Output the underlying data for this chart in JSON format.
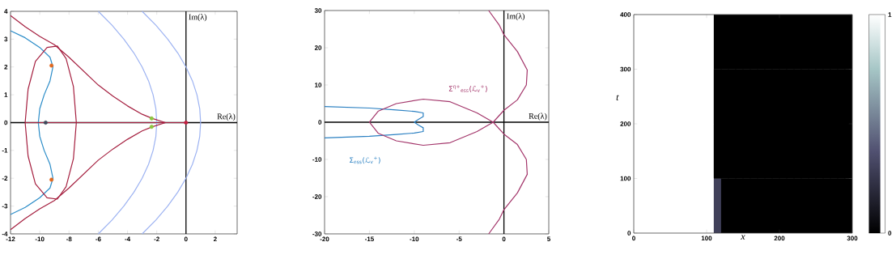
{
  "chart_data": [
    {
      "type": "line",
      "xlim": [
        -12,
        3.5
      ],
      "ylim": [
        -4,
        4
      ],
      "xticks": [
        -12,
        -10,
        -8,
        -6,
        -4,
        -2,
        0,
        2
      ],
      "yticks": [
        -4,
        -3,
        -2,
        -1,
        0,
        1,
        2,
        3,
        4
      ],
      "ref_lines": [
        {
          "axis": "x",
          "value": 0,
          "label": "Im(λ)",
          "color": "#000000"
        },
        {
          "axis": "y",
          "value": 0,
          "label": "Re(λ)",
          "color": "#000000"
        }
      ],
      "series": [
        {
          "color": "#9db3f2",
          "x": [
            -6,
            -5.06,
            -4.25,
            -3.56,
            -3,
            -2.56,
            -2.25,
            -2.06,
            -2,
            -2.06,
            -2.25,
            -2.56,
            -3,
            -3.56,
            -4.25,
            -5.06,
            -6
          ],
          "values": [
            4,
            3.5,
            3,
            2.5,
            2,
            1.5,
            1,
            0.5,
            0,
            -0.5,
            -1,
            -1.5,
            -2,
            -2.5,
            -3,
            -3.5,
            -4
          ]
        },
        {
          "color": "#9db3f2",
          "x": [
            -3,
            -2.06,
            -1.25,
            -0.56,
            0,
            0.44,
            0.75,
            0.94,
            1,
            0.94,
            0.75,
            0.44,
            0,
            -0.56,
            -1.25,
            -2.06,
            -3
          ],
          "values": [
            4,
            3.5,
            3,
            2.5,
            2,
            1.5,
            1,
            0.5,
            0,
            -0.5,
            -1,
            -1.5,
            -2,
            -2.5,
            -3,
            -3.5,
            -4
          ]
        },
        {
          "color": "#2b8cc8",
          "x": [
            -12,
            -11,
            -10,
            -9.3,
            -9.1,
            -9.3,
            -9.7,
            -10,
            -10.1,
            -10,
            -9.7,
            -9.3,
            -9.1,
            -9.3,
            -10,
            -11,
            -12
          ],
          "values": [
            3.3,
            3.05,
            2.7,
            2.35,
            2,
            1.5,
            1,
            0.5,
            0,
            -0.5,
            -1,
            -1.5,
            -2,
            -2.35,
            -2.7,
            -3.05,
            -3.3
          ]
        },
        {
          "color": "#a51f3f",
          "x": [
            -12,
            -11,
            -10,
            -9,
            -8,
            -6,
            -5,
            -4,
            -3,
            -2.3,
            -1.4,
            -2.3,
            -3,
            -4,
            -5,
            -6,
            -8,
            -9,
            -10,
            -11,
            -12
          ],
          "values": [
            3.85,
            3.45,
            3.1,
            2.8,
            2.35,
            1.35,
            0.95,
            0.6,
            0.3,
            0.15,
            0,
            -0.15,
            -0.3,
            -0.6,
            -0.95,
            -1.35,
            -2.35,
            -2.8,
            -3.1,
            -3.45,
            -3.85
          ]
        },
        {
          "color": "#a51f3f",
          "x": [
            -11,
            -10.8,
            -10.3,
            -9.5,
            -8.8,
            -8.2,
            -7.7,
            -7.5,
            -7.7,
            -8.2,
            -8.8,
            -9.5,
            -10.3,
            -10.8,
            -11,
            0
          ],
          "values": [
            0,
            1.2,
            2.2,
            2.7,
            2.75,
            2.3,
            1.3,
            0,
            -1.3,
            -2.3,
            -2.75,
            -2.7,
            -2.2,
            -1.2,
            0,
            0
          ]
        },
        {
          "type": "scatter",
          "marker": "circle",
          "color": "#e2691f",
          "x": [
            -9.2,
            -9.2
          ],
          "values": [
            2.05,
            -2.05
          ]
        },
        {
          "type": "scatter",
          "marker": "circle",
          "color": "#3e4a5c",
          "x": [
            -9.6
          ],
          "values": [
            0
          ]
        },
        {
          "type": "scatter",
          "marker": "circle",
          "color": "#8cc63f",
          "x": [
            -2.35,
            -2.35
          ],
          "values": [
            0.15,
            -0.15
          ]
        },
        {
          "type": "scatter",
          "marker": "circle",
          "color": "#c41e3f",
          "x": [
            0
          ],
          "values": [
            0
          ]
        }
      ]
    },
    {
      "type": "line",
      "xlim": [
        -20,
        5
      ],
      "ylim": [
        -30,
        30
      ],
      "xticks": [
        -20,
        -15,
        -10,
        -5,
        0,
        5
      ],
      "yticks": [
        -30,
        -20,
        -10,
        0,
        10,
        20,
        30
      ],
      "ref_lines": [
        {
          "axis": "x",
          "value": 0,
          "label": "Im(λ)",
          "color": "#000000"
        },
        {
          "axis": "y",
          "value": 0,
          "label": "Re(λ)",
          "color": "#000000"
        }
      ],
      "annotations": [
        "Σ$_{ess}$(ℒ$_{v}$$^{+}$)",
        "Σ$^{η+}$$_{ess}$(ℒ$_{v}$$^{+}$)"
      ],
      "series": [
        {
          "color": "#2b80c2",
          "x": [
            -20,
            -15,
            -12,
            -10,
            -9,
            -9,
            -9.5,
            -10,
            -9.5,
            -9,
            -9,
            -10,
            -12,
            -15,
            -20
          ],
          "values": [
            4.2,
            3.8,
            3.3,
            2.9,
            2.5,
            1.5,
            0.8,
            0,
            -0.8,
            -1.5,
            -2.5,
            -2.9,
            -3.3,
            -3.8,
            -4.2
          ]
        },
        {
          "color": "#a3356a",
          "x": [
            -1.7,
            -0.5,
            0,
            1.5,
            2.6,
            2.5,
            1.5,
            0,
            -1.2,
            -3,
            -6,
            -9,
            -12,
            -14,
            -15,
            -14,
            -12,
            -9,
            -6,
            -3,
            -1.2,
            0,
            1.5,
            2.5,
            2.6,
            1.5,
            0,
            -0.5,
            -1.7
          ],
          "values": [
            30,
            26,
            23.5,
            19,
            14,
            10,
            6,
            3.2,
            0,
            -2.5,
            -5.5,
            -6.2,
            -5,
            -3,
            0,
            3,
            5,
            6.2,
            5.5,
            2.5,
            0,
            -3.2,
            -6,
            -10,
            -14,
            -19,
            -23.5,
            -26,
            -30
          ]
        }
      ]
    },
    {
      "type": "heatmap",
      "xlabel": "x",
      "ylabel": "t",
      "xlim": [
        0,
        300
      ],
      "ylim": [
        0,
        400
      ],
      "xticks": [
        0,
        100,
        200,
        300
      ],
      "yticks": [
        0,
        100,
        200,
        300,
        400
      ],
      "clim": [
        0,
        1
      ],
      "cticks": [
        0,
        1
      ],
      "cells": [
        [
          1,
          1,
          1,
          1,
          1,
          1,
          1,
          1,
          1,
          1,
          1,
          0,
          0,
          0,
          0,
          0,
          0,
          0,
          0,
          0,
          0,
          0,
          0,
          0,
          0,
          0,
          0,
          0,
          0,
          0
        ],
        [
          1,
          1,
          1,
          1,
          1,
          1,
          1,
          1,
          1,
          1,
          1,
          0,
          0,
          0,
          0,
          0,
          0,
          0,
          0,
          0,
          0,
          0,
          0,
          0,
          0,
          0,
          0,
          0,
          0,
          0
        ],
        [
          1,
          1,
          1,
          1,
          1,
          1,
          1,
          1,
          1,
          1,
          1,
          0,
          0,
          0,
          0,
          0,
          0,
          0,
          0,
          0,
          0,
          0,
          0,
          0,
          0,
          0,
          0,
          0,
          0,
          0
        ],
        [
          1,
          1,
          1,
          1,
          1,
          1,
          1,
          1,
          1,
          1,
          1,
          0.3,
          0,
          0,
          0,
          0,
          0,
          0,
          0,
          0,
          0,
          0,
          0,
          0,
          0,
          0,
          0,
          0,
          0,
          0
        ]
      ]
    }
  ]
}
